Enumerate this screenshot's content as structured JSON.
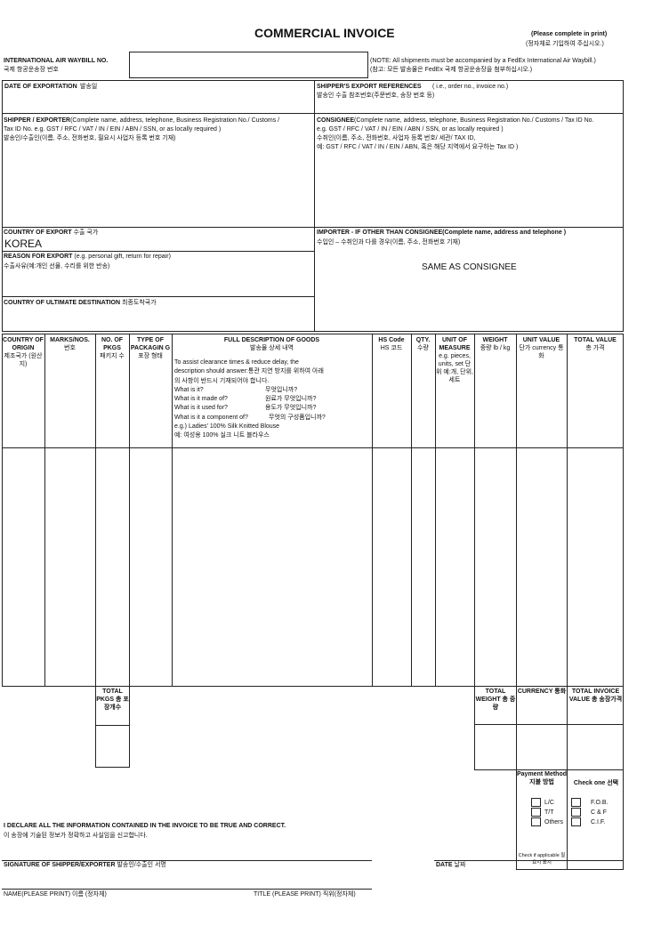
{
  "header": {
    "title": "COMMERCIAL INVOICE",
    "print_note": "(Please complete in print)",
    "print_note_ko": "(정자체로 기입하여 주십시오.)"
  },
  "waybill": {
    "label": "INTERNATIONAL AIR WAYBILL NO.",
    "label_ko": "국제 항공운송장 번호",
    "value": "",
    "note": "(NOTE: All shipments must be accompanied by a FedEx International Air Waybill.)",
    "note_ko": "(참고: 모든 발송물은 FedEx 국제 항공운송장을 첨부하십시오.)"
  },
  "date_export": {
    "label": "DATE OF EXPORTATION",
    "label_ko": "발송일"
  },
  "export_refs": {
    "label": "SHIPPER'S EXPORT REFERENCES",
    "label_hint": "( i.e., order no., invoice no.)",
    "label_ko": "발송인 수출 참조번호(주문번호, 송장 번호 등)"
  },
  "shipper": {
    "label": "SHIPPER / EXPORTER",
    "hint1": "(Complete name, address, telephone, Business Registration No./ Customs /",
    "hint2": "Tax ID No. e.g. GST / RFC / VAT / IN / EIN / ABN / SSN, or as locally required )",
    "label_ko": "발송인/수출인(이름, 주소, 전화번호, 필요시 사업자 등록 번호 기재)"
  },
  "consignee": {
    "label": "CONSIGNEE",
    "hint1": "(Complete name, address, telephone, Business Registration No./ Customs / Tax ID No.",
    "hint2": "e.g. GST / RFC / VAT / IN / EIN / ABN / SSN, or as locally required )",
    "label_ko": "수취인(이름, 주소, 전화번호, 사업자 등록 번호/ 세관/ TAX ID,",
    "label_ko2": "예: GST / RFC / VAT / IN / EIN / ABN, 혹은 해당 지역에서 요구하는 Tax ID )"
  },
  "country_export": {
    "label": "COUNTRY OF EXPORT",
    "label_ko": "수출 국가",
    "value": "KOREA"
  },
  "reason": {
    "label": "REASON FOR EXPORT",
    "hint": "(e.g. personal gift, return for repair)",
    "label_ko": "수출사유(예:개인 선물, 수리를 위한 반송)"
  },
  "ultimate_dest": {
    "label": "COUNTRY OF ULTIMATE DESTINATION",
    "label_ko": "최종도착국가"
  },
  "importer": {
    "label": "IMPORTER - IF OTHER THAN CONSIGNEE(Complete name, address and telephone )",
    "label_ko": "수입인 – 수취인과 다를 경우(이름, 주소, 전화번호 기재)",
    "value": "SAME AS CONSIGNEE"
  },
  "goods_table": {
    "columns": [
      {
        "en": "COUNTRY OF ORIGIN",
        "ko": "제조국가 (원산지)"
      },
      {
        "en": "MARKS/NOS.",
        "ko": "번호"
      },
      {
        "en": "NO. OF PKGS",
        "ko": "패키지 수"
      },
      {
        "en": "TYPE OF PACKAGIN G",
        "ko": "포장 형태"
      },
      {
        "en": "FULL DESCRIPTION OF GOODS",
        "ko": "발송물 상세 내역"
      },
      {
        "en": "HS Code",
        "ko": "HS 코드"
      },
      {
        "en": "QTY.",
        "ko": "수량"
      },
      {
        "en": "UNIT OF MEASURE",
        "ko": "e.g. pieces, units, set 단위 예:개, 단위, 세트"
      },
      {
        "en": "WEIGHT",
        "ko": "중량 lb / kg"
      },
      {
        "en": "UNIT VALUE",
        "ko": "단가 currency 통화"
      },
      {
        "en": "TOTAL VALUE",
        "ko": "총 가격"
      }
    ],
    "description_help": [
      "To assist clearance times & reduce delay, the",
      "description should answer:통관 지연 방지를 위하여 아래",
      "의 사항이 반드시 기재되어야 합니다."
    ],
    "questions": [
      [
        "What is it?",
        "무엇입니까?"
      ],
      [
        "What is it made of?",
        "원료가 무엇입니까?"
      ],
      [
        "What is it used for?",
        "용도가 무엇입니까?"
      ],
      [
        "What is it a component of?",
        "무엇의 구성품입니까?"
      ]
    ],
    "example": "e.g.) Ladies' 100% Silk Knitted Blouse",
    "example_ko": "예: 여성용 100% 실크 니트 블라우스"
  },
  "totals": {
    "pkgs": "TOTAL PKGS 총 포장개수",
    "weight": "TOTAL WEIGHT 총 중량",
    "currency": "CURRENCY 통화",
    "invoice_value": "TOTAL INVOICE VALUE 총 송장가격"
  },
  "payment": {
    "label": "Payment Method 지불 방법",
    "options": [
      "L/C",
      "T/T",
      "Others"
    ],
    "footnote": "Check if applicable 필요시 표시",
    "check_label": "Check one 선택",
    "terms": [
      "F.O.B.",
      "C & F",
      "C.I.F."
    ]
  },
  "declaration": {
    "text": "I DECLARE ALL THE INFORMATION CONTAINED IN THE INVOICE TO BE TRUE AND CORRECT.",
    "text_ko": "이 송장에 기술된 정보가 정확하고 사실임을 신고합니다."
  },
  "signature": {
    "label": "SIGNATURE OF SHIPPER/EXPORTER",
    "label_ko": "발송인/수출인 서명",
    "date": "DATE",
    "date_ko": "날짜",
    "name": "NAME(PLEASE PRINT)",
    "name_ko": "이름 (정자체)",
    "title": "TITLE (PLEASE PRINT)",
    "title_ko": "직위(정자체)"
  }
}
